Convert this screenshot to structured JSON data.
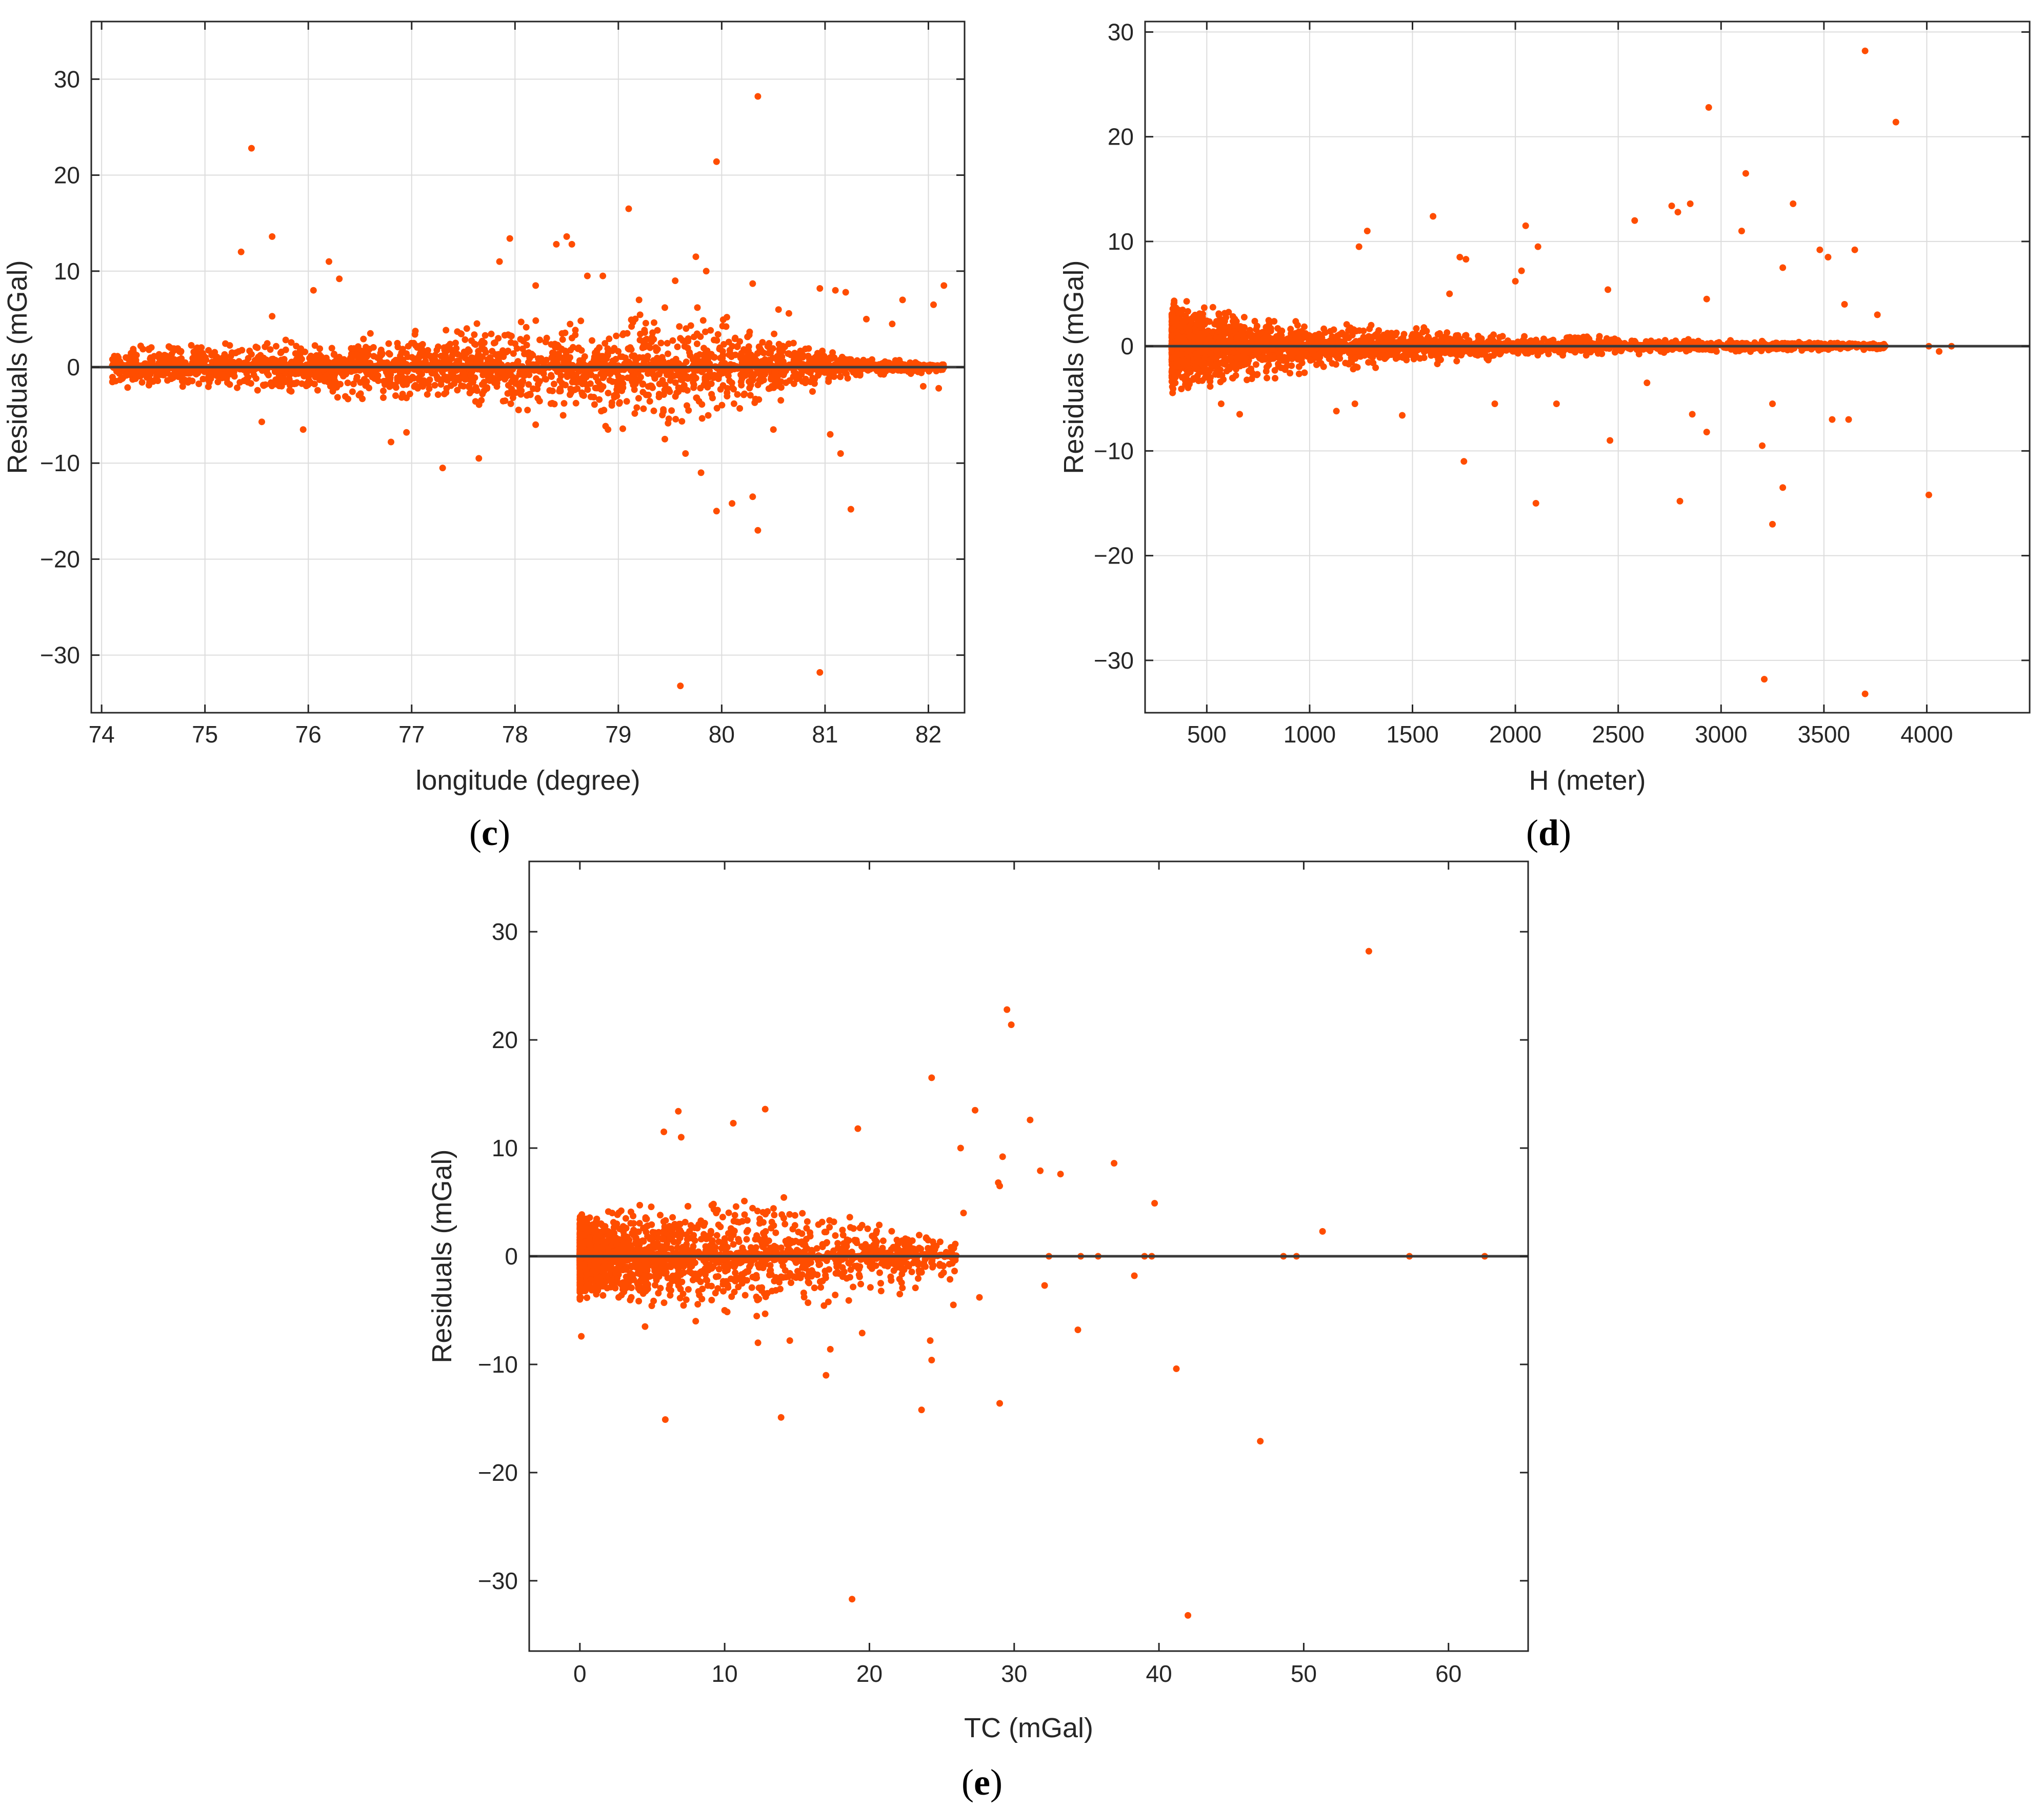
{
  "colors": {
    "points": "#ff4d00",
    "zero_line": "#3a3a3a",
    "grid": "#dcdcdc",
    "axes": "#262626"
  },
  "chart_data": [
    {
      "id": "c",
      "type": "scatter",
      "panel_label": "c",
      "xlabel": "longitude (degree)",
      "ylabel": "Residuals (mGal)",
      "xlim": [
        73.9,
        82.35
      ],
      "ylim": [
        -36,
        36
      ],
      "xticks": [
        74,
        75,
        76,
        77,
        78,
        79,
        80,
        81,
        82
      ],
      "yticks": [
        -30,
        -20,
        -10,
        0,
        10,
        20,
        30
      ],
      "grid": true,
      "zero_line": true,
      "series": [
        {
          "points": [
            [
              75.45,
              22.8
            ],
            [
              75.35,
              12.0
            ],
            [
              75.65,
              13.6
            ],
            [
              76.2,
              11.0
            ],
            [
              76.3,
              9.2
            ],
            [
              76.05,
              8.0
            ],
            [
              75.65,
              5.3
            ],
            [
              77.85,
              11.0
            ],
            [
              77.95,
              13.4
            ],
            [
              78.4,
              12.8
            ],
            [
              78.5,
              13.6
            ],
            [
              78.55,
              12.8
            ],
            [
              79.1,
              16.5
            ],
            [
              79.55,
              9.0
            ],
            [
              79.75,
              11.5
            ],
            [
              79.85,
              10.0
            ],
            [
              79.95,
              21.4
            ],
            [
              80.35,
              28.2
            ],
            [
              80.3,
              8.7
            ],
            [
              80.95,
              8.2
            ],
            [
              81.1,
              8.0
            ],
            [
              81.2,
              7.8
            ],
            [
              81.75,
              7.0
            ],
            [
              82.05,
              6.5
            ],
            [
              82.15,
              8.5
            ],
            [
              81.65,
              4.5
            ],
            [
              80.55,
              6.0
            ],
            [
              78.2,
              8.5
            ],
            [
              78.7,
              9.5
            ],
            [
              78.85,
              9.5
            ],
            [
              79.2,
              7.0
            ],
            [
              79.45,
              6.2
            ],
            [
              80.05,
              5.2
            ],
            [
              80.65,
              5.6
            ],
            [
              81.4,
              5.0
            ],
            [
              75.55,
              -5.7
            ],
            [
              75.95,
              -6.5
            ],
            [
              76.8,
              -7.8
            ],
            [
              76.95,
              -6.8
            ],
            [
              77.3,
              -10.5
            ],
            [
              77.65,
              -9.5
            ],
            [
              78.2,
              -6.0
            ],
            [
              78.9,
              -6.5
            ],
            [
              79.45,
              -7.5
            ],
            [
              79.65,
              -9.0
            ],
            [
              79.8,
              -11.0
            ],
            [
              79.95,
              -15.0
            ],
            [
              80.1,
              -14.2
            ],
            [
              80.3,
              -13.5
            ],
            [
              80.35,
              -17.0
            ],
            [
              79.6,
              -33.2
            ],
            [
              80.95,
              -31.8
            ],
            [
              81.05,
              -7.0
            ],
            [
              81.15,
              -9.0
            ],
            [
              81.25,
              -14.8
            ],
            [
              80.5,
              -6.5
            ],
            [
              81.95,
              -2.0
            ],
            [
              82.1,
              -2.2
            ]
          ]
        }
      ],
      "bulk": {
        "x_range": [
          74.1,
          82.15
        ],
        "spread_segments": [
          [
            74.1,
            2.2
          ],
          [
            76.0,
            3.0
          ],
          [
            77.5,
            4.5
          ],
          [
            78.5,
            6.0
          ],
          [
            79.5,
            7.0
          ],
          [
            80.5,
            4.0
          ],
          [
            81.3,
            1.0
          ],
          [
            82.15,
            0.5
          ]
        ]
      }
    },
    {
      "id": "d",
      "type": "scatter",
      "panel_label": "d",
      "xlabel": "H (meter)",
      "ylabel": "Residuals (mGal)",
      "xlim": [
        200,
        4500
      ],
      "ylim": [
        -35,
        31
      ],
      "xticks": [
        500,
        1000,
        1500,
        2000,
        2500,
        3000,
        3500,
        4000
      ],
      "yticks": [
        -30,
        -20,
        -10,
        0,
        10,
        20,
        30
      ],
      "grid": true,
      "zero_line": true,
      "series": [
        {
          "points": [
            [
              3700,
              28.2
            ],
            [
              3850,
              21.4
            ],
            [
              2940,
              22.8
            ],
            [
              3120,
              16.5
            ],
            [
              1600,
              12.4
            ],
            [
              2050,
              11.5
            ],
            [
              2580,
              12.0
            ],
            [
              2760,
              13.4
            ],
            [
              2850,
              13.6
            ],
            [
              3100,
              11.0
            ],
            [
              3350,
              13.6
            ],
            [
              1280,
              11.0
            ],
            [
              1240,
              9.5
            ],
            [
              2110,
              9.5
            ],
            [
              2790,
              12.8
            ],
            [
              3650,
              9.2
            ],
            [
              3480,
              9.2
            ],
            [
              3760,
              3.0
            ],
            [
              3520,
              8.5
            ],
            [
              2030,
              7.2
            ],
            [
              1760,
              8.3
            ],
            [
              1730,
              8.5
            ],
            [
              2930,
              4.5
            ],
            [
              3300,
              7.5
            ],
            [
              2000,
              6.2
            ],
            [
              2450,
              5.4
            ],
            [
              1680,
              5.0
            ],
            [
              3600,
              4.0
            ],
            [
              4010,
              0.0
            ],
            [
              4060,
              -0.5
            ],
            [
              4120,
              0.0
            ],
            [
              2100,
              -15.0
            ],
            [
              1750,
              -11.0
            ],
            [
              1450,
              -6.6
            ],
            [
              2460,
              -9.0
            ],
            [
              2800,
              -14.8
            ],
            [
              2860,
              -6.5
            ],
            [
              2930,
              -8.2
            ],
            [
              3200,
              -9.5
            ],
            [
              3210,
              -31.8
            ],
            [
              3250,
              -17.0
            ],
            [
              3300,
              -13.5
            ],
            [
              3540,
              -7.0
            ],
            [
              3620,
              -7.0
            ],
            [
              3700,
              -33.2
            ],
            [
              4010,
              -14.2
            ],
            [
              3250,
              -5.5
            ],
            [
              2640,
              -3.5
            ],
            [
              660,
              -6.5
            ],
            [
              570,
              -5.5
            ],
            [
              1130,
              -6.2
            ],
            [
              1220,
              -5.5
            ],
            [
              1900,
              -5.5
            ],
            [
              2200,
              -5.5
            ]
          ]
        }
      ],
      "bulk": {
        "x_range": [
          330,
          3800
        ],
        "spread_segments": [
          [
            330,
            4.5
          ],
          [
            700,
            3.5
          ],
          [
            1000,
            2.5
          ],
          [
            2000,
            1.2
          ],
          [
            3000,
            0.6
          ],
          [
            3800,
            0.3
          ]
        ]
      }
    },
    {
      "id": "e",
      "type": "scatter",
      "panel_label": "e",
      "xlabel": "TC (mGal)",
      "ylabel": "Residuals (mGal)",
      "xlim": [
        -3.5,
        65.5
      ],
      "ylim": [
        -36.5,
        36.5
      ],
      "xticks": [
        0,
        10,
        20,
        30,
        40,
        50,
        60
      ],
      "yticks": [
        -30,
        -20,
        -10,
        0,
        10,
        20,
        30
      ],
      "grid": false,
      "zero_line": true,
      "series": [
        {
          "points": [
            [
              54.5,
              28.2
            ],
            [
              29.5,
              22.8
            ],
            [
              29.8,
              21.4
            ],
            [
              24.3,
              16.5
            ],
            [
              31.1,
              12.6
            ],
            [
              27.3,
              13.5
            ],
            [
              12.8,
              13.6
            ],
            [
              6.8,
              13.4
            ],
            [
              10.6,
              12.3
            ],
            [
              19.2,
              11.8
            ],
            [
              5.8,
              11.5
            ],
            [
              7.0,
              11.0
            ],
            [
              26.3,
              10.0
            ],
            [
              29.2,
              9.2
            ],
            [
              36.9,
              8.6
            ],
            [
              33.2,
              7.6
            ],
            [
              31.8,
              7.9
            ],
            [
              28.9,
              6.8
            ],
            [
              29.0,
              6.5
            ],
            [
              39.7,
              4.9
            ],
            [
              26.5,
              4.0
            ],
            [
              51.3,
              2.3
            ],
            [
              48.6,
              0.0
            ],
            [
              49.5,
              0.0
            ],
            [
              57.3,
              0.0
            ],
            [
              62.5,
              0.0
            ],
            [
              39.0,
              0.0
            ],
            [
              39.5,
              0.0
            ],
            [
              34.6,
              0.0
            ],
            [
              35.8,
              0.0
            ],
            [
              32.4,
              0.0
            ],
            [
              38.3,
              -1.8
            ],
            [
              34.4,
              -6.8
            ],
            [
              32.1,
              -2.7
            ],
            [
              41.2,
              -10.4
            ],
            [
              47.0,
              -17.1
            ],
            [
              42.0,
              -33.2
            ],
            [
              18.8,
              -31.7
            ],
            [
              13.9,
              -14.9
            ],
            [
              5.9,
              -15.1
            ],
            [
              23.6,
              -14.2
            ],
            [
              29.0,
              -13.6
            ],
            [
              24.3,
              -9.6
            ],
            [
              24.2,
              -7.8
            ],
            [
              17.0,
              -11.0
            ],
            [
              17.3,
              -8.6
            ],
            [
              19.5,
              -7.1
            ],
            [
              22.1,
              -3.5
            ],
            [
              25.8,
              -4.5
            ],
            [
              27.6,
              -3.8
            ],
            [
              12.3,
              -8.0
            ],
            [
              14.5,
              -7.8
            ],
            [
              4.5,
              -6.5
            ],
            [
              0.1,
              -7.4
            ],
            [
              8.0,
              -6.0
            ],
            [
              10.0,
              -5.0
            ]
          ]
        }
      ],
      "bulk": {
        "x_range": [
          0,
          26
        ],
        "spread_segments": [
          [
            0,
            4.0
          ],
          [
            2,
            4.5
          ],
          [
            6,
            5.0
          ],
          [
            12,
            6.0
          ],
          [
            20,
            4.0
          ],
          [
            26,
            2.0
          ]
        ]
      }
    }
  ]
}
